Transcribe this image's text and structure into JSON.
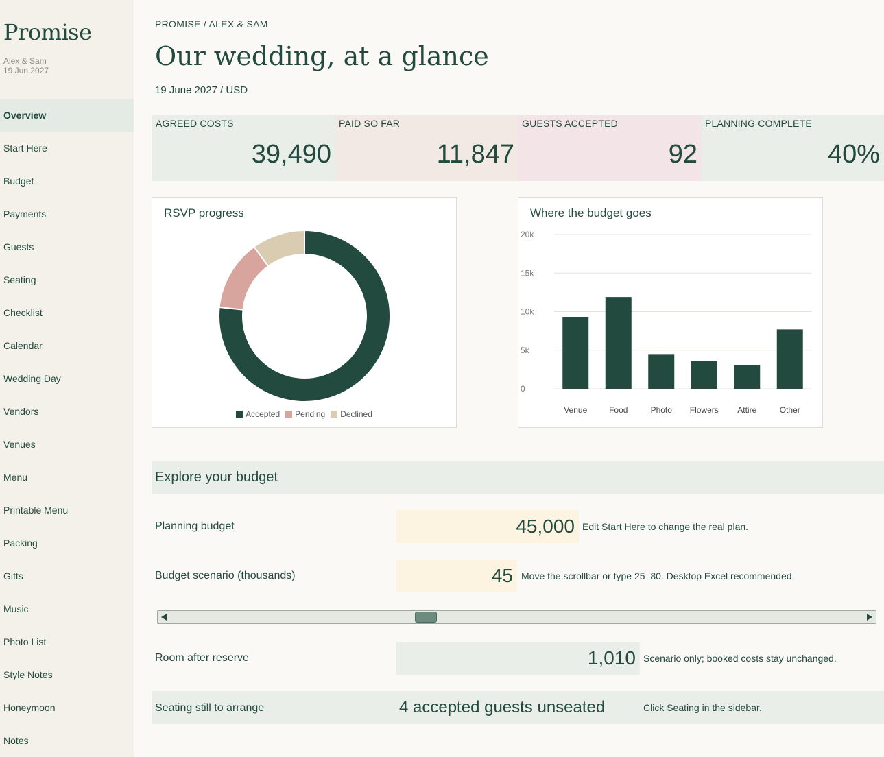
{
  "sidebar": {
    "brand": "Promise",
    "couple": "Alex & Sam",
    "date": "19 Jun 2027",
    "items": [
      {
        "label": "Overview",
        "active": true
      },
      {
        "label": "Start Here"
      },
      {
        "label": "Budget"
      },
      {
        "label": "Payments"
      },
      {
        "label": "Guests"
      },
      {
        "label": "Seating"
      },
      {
        "label": "Checklist"
      },
      {
        "label": "Calendar"
      },
      {
        "label": "Wedding Day"
      },
      {
        "label": "Vendors"
      },
      {
        "label": "Venues"
      },
      {
        "label": "Menu"
      },
      {
        "label": "Printable Menu"
      },
      {
        "label": "Packing"
      },
      {
        "label": "Gifts"
      },
      {
        "label": "Music"
      },
      {
        "label": "Photo List"
      },
      {
        "label": "Style Notes"
      },
      {
        "label": "Honeymoon"
      },
      {
        "label": "Notes"
      }
    ]
  },
  "header": {
    "breadcrumb": "PROMISE / ALEX & SAM",
    "title": "Our wedding, at a glance",
    "subtitle": "19 June 2027 / USD"
  },
  "stats": [
    {
      "label": "AGREED COSTS",
      "value": "39,490",
      "color": "#e9eee9"
    },
    {
      "label": "PAID SO FAR",
      "value": "11,847",
      "color": "#f3e9e4"
    },
    {
      "label": "GUESTS ACCEPTED",
      "value": "92",
      "color": "#f3e4e8"
    },
    {
      "label": "PLANNING COMPLETE",
      "value": "40%",
      "color": "#e9eee9"
    }
  ],
  "rsvp": {
    "title": "RSVP progress"
  },
  "budget_chart": {
    "title": "Where the budget goes"
  },
  "chart_data": [
    {
      "type": "pie",
      "title": "RSVP progress",
      "donut": true,
      "labels": [
        "Accepted",
        "Pending",
        "Declined"
      ],
      "values": [
        92,
        16,
        12
      ],
      "colors": [
        "#234a3e",
        "#d8a49e",
        "#d9ccb0"
      ]
    },
    {
      "type": "bar",
      "title": "Where the budget goes",
      "categories": [
        "Venue",
        "Food",
        "Photo",
        "Flowers",
        "Attire",
        "Other"
      ],
      "values": [
        9300,
        11900,
        4500,
        3600,
        3100,
        7700
      ],
      "ylim": [
        0,
        20000
      ],
      "yticks": [
        0,
        5000,
        10000,
        15000,
        20000
      ],
      "ytick_labels": [
        "0",
        "5k",
        "10k",
        "15k",
        "20k"
      ],
      "grid": true,
      "color": "#234a3e"
    }
  ],
  "explore": {
    "title": "Explore your budget",
    "planning_label": "Planning budget",
    "planning_value": "45,000",
    "planning_note": "Edit Start Here to change the real plan.",
    "scenario_label": "Budget scenario (thousands)",
    "scenario_value": "45",
    "scenario_note": "Move the scrollbar or type 25–80. Desktop Excel recommended.",
    "scrollbar": {
      "min": 25,
      "max": 80,
      "value": 45
    },
    "room_label": "Room after reserve",
    "room_value": "1,010",
    "room_note": "Scenario only; booked costs stay unchanged.",
    "seating_label": "Seating still to arrange",
    "seating_value": "4 accepted guests unseated",
    "seating_note": "Click Seating in the sidebar."
  },
  "colors": {
    "accent": "#234a3e",
    "input_fill": "#fdf3e1",
    "calc_fill": "#e9eee9"
  }
}
